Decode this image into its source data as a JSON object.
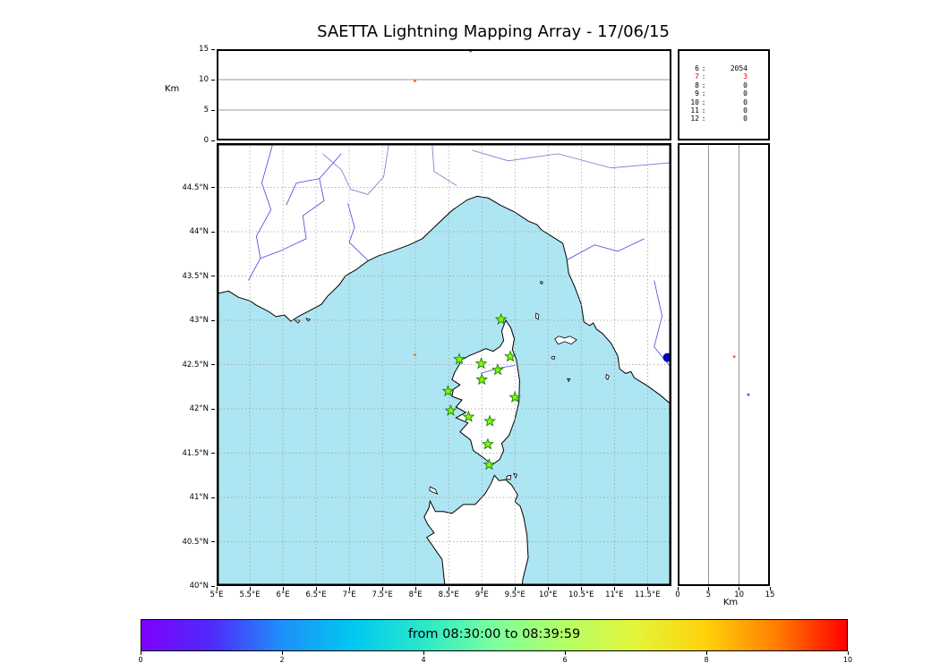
{
  "title": "SAETTA Lightning Mapping Array - 17/06/15",
  "chart_data": {
    "type": "scatter",
    "title": "SAETTA Lightning Mapping Array - 17/06/15",
    "colors": {
      "sea": "#ade6f2",
      "land": "#ffffff",
      "coast": "#000000",
      "grid": "#999999",
      "station_fill": "#7CFC00",
      "station_edge": "#1f7a14",
      "river_blue": "#4048d8",
      "river_purple": "#8070cc"
    },
    "panels": {
      "alt_lon": {
        "ylabel": "Km",
        "ylim": [
          0,
          15
        ],
        "yticks": [
          0,
          5,
          10,
          15
        ],
        "ytick_labels": [
          "0",
          "5",
          "10",
          "15"
        ],
        "points": [
          {
            "lon": 8.83,
            "km": 14.7,
            "color": "#4466ff",
            "r": 1.5
          },
          {
            "lon": 7.99,
            "km": 9.8,
            "color": "#ff6633",
            "r": 1.5
          }
        ]
      },
      "map": {
        "lon_range": [
          5.0,
          11.86
        ],
        "lat_range": [
          40.0,
          45.0
        ],
        "lon_ticks": [
          5,
          5.5,
          6,
          6.5,
          7,
          7.5,
          8,
          8.5,
          9,
          9.5,
          10,
          10.5,
          11,
          11.5
        ],
        "lon_tick_labels": [
          "5°E",
          "5.5°E",
          "6°E",
          "6.5°E",
          "7°E",
          "7.5°E",
          "8°E",
          "8.5°E",
          "9°E",
          "9.5°E",
          "10°E",
          "10.5°E",
          "11°E",
          "11.5°E"
        ],
        "lat_ticks": [
          44.5,
          44,
          43.5,
          43,
          42.5,
          42,
          41.5,
          41,
          40.5,
          40
        ],
        "lat_tick_labels": [
          "44.5°N",
          "44°N",
          "43.5°N",
          "43°N",
          "42.5°N",
          "42°N",
          "41.5°N",
          "41°N",
          "40.5°N",
          "40°N"
        ],
        "stations": [
          {
            "lon": 9.29,
            "lat": 43.01
          },
          {
            "lon": 8.66,
            "lat": 42.56
          },
          {
            "lon": 8.99,
            "lat": 42.51
          },
          {
            "lon": 9.43,
            "lat": 42.59
          },
          {
            "lon": 9.24,
            "lat": 42.44
          },
          {
            "lon": 9.0,
            "lat": 42.33
          },
          {
            "lon": 8.49,
            "lat": 42.2
          },
          {
            "lon": 9.5,
            "lat": 42.13
          },
          {
            "lon": 8.53,
            "lat": 41.98
          },
          {
            "lon": 8.8,
            "lat": 41.91
          },
          {
            "lon": 9.12,
            "lat": 41.86
          },
          {
            "lon": 9.09,
            "lat": 41.6
          },
          {
            "lon": 9.11,
            "lat": 41.37
          }
        ],
        "points": [
          {
            "lon": 7.99,
            "lat": 42.61,
            "color": "#ff6633",
            "r": 1.5
          },
          {
            "lon": 11.8,
            "lat": 42.58,
            "color": "#0000bb",
            "r": 5
          }
        ]
      },
      "alt_lat": {
        "xlabel": "Km",
        "xlim": [
          0,
          15
        ],
        "xticks": [
          0,
          5,
          10,
          15
        ],
        "xtick_labels": [
          "0",
          "5",
          "10",
          "15"
        ],
        "points": [
          {
            "km": 9.2,
            "lat": 42.59,
            "color": "#ff6633",
            "r": 1.5
          },
          {
            "km": 11.5,
            "lat": 42.16,
            "color": "#4466ff",
            "r": 1.5
          }
        ]
      }
    },
    "station_counts": {
      "separator": ":",
      "rows": [
        {
          "n": "6",
          "count": "2054",
          "color": "#000000"
        },
        {
          "n": "7",
          "count": "3",
          "color": "#dd0000"
        },
        {
          "n": "8",
          "count": "0",
          "color": "#000000"
        },
        {
          "n": "9",
          "count": "0",
          "color": "#000000"
        },
        {
          "n": "10",
          "count": "0",
          "color": "#000000"
        },
        {
          "n": "11",
          "count": "0",
          "color": "#000000"
        },
        {
          "n": "12",
          "count": "0",
          "color": "#000000"
        }
      ]
    },
    "colorbar": {
      "label": "from 08:30:00 to 08:39:59",
      "range": [
        0,
        10
      ],
      "tick_values": [
        0,
        2,
        4,
        6,
        8,
        10
      ],
      "tick_labels": [
        "0",
        "2",
        "4",
        "6",
        "8",
        "10"
      ],
      "gradient": [
        "#8000ff",
        "#4e2bfa",
        "#1e90fa",
        "#00c8f0",
        "#2ae8c8",
        "#7dff9e",
        "#b4ff66",
        "#e3f53a",
        "#ffd20a",
        "#ff7e00",
        "#ff0000"
      ]
    }
  }
}
